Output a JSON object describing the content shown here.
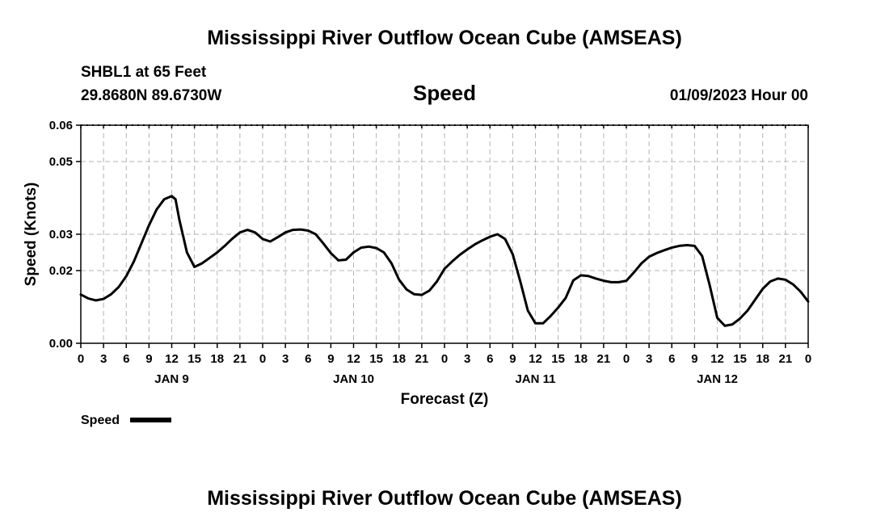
{
  "page": {
    "title_top": "Mississippi River Outflow Ocean Cube (AMSEAS)",
    "title_bottom": "Mississippi River Outflow Ocean Cube (AMSEAS)",
    "station": "SHBL1 at 65 Feet",
    "coords": "29.8680N  89.6730W",
    "variable": "Speed",
    "datetime": "01/09/2023 Hour 00"
  },
  "chart_data": {
    "type": "line",
    "title": "Speed",
    "xlabel": "Forecast (Z)",
    "ylabel": "Speed (Knots)",
    "x_unit": "forecast hour",
    "xlim": [
      0,
      96
    ],
    "ylim": [
      0,
      0.06
    ],
    "grid": true,
    "y_tick_values": [
      0,
      0.02,
      0.03,
      0.05,
      0.06
    ],
    "y_tick_labels": [
      "0.00",
      "0.02",
      "0.03",
      "0.05",
      "0.06"
    ],
    "x_tick_values": [
      0,
      3,
      6,
      9,
      12,
      15,
      18,
      21,
      24,
      27,
      30,
      33,
      36,
      39,
      42,
      45,
      48,
      51,
      54,
      57,
      60,
      63,
      66,
      69,
      72,
      75,
      78,
      81,
      84,
      87,
      90,
      93,
      96
    ],
    "x_tick_labels": [
      "0",
      "3",
      "6",
      "9",
      "12",
      "15",
      "18",
      "21",
      "0",
      "3",
      "6",
      "9",
      "12",
      "15",
      "18",
      "21",
      "0",
      "3",
      "6",
      "9",
      "12",
      "15",
      "18",
      "21",
      "0",
      "3",
      "6",
      "9",
      "12",
      "15",
      "18",
      "21",
      "0"
    ],
    "day_labels": [
      {
        "label": "JAN 9",
        "x": 12
      },
      {
        "label": "JAN 10",
        "x": 36
      },
      {
        "label": "JAN 11",
        "x": 60
      },
      {
        "label": "JAN 12",
        "x": 84
      }
    ],
    "legend": {
      "label": "Speed",
      "placement": "bottom-left"
    },
    "series": [
      {
        "name": "Speed",
        "x": [
          0,
          1,
          2,
          3,
          4,
          5,
          6,
          7,
          8,
          9,
          10,
          11,
          12,
          12.5,
          13,
          14,
          15,
          16,
          17,
          18,
          19,
          20,
          21,
          22,
          23,
          24,
          25,
          26,
          27,
          28,
          29,
          30,
          31,
          32,
          33,
          34,
          35,
          36,
          37,
          38,
          39,
          40,
          41,
          42,
          43,
          44,
          45,
          46,
          47,
          48,
          49,
          50,
          51,
          52,
          53,
          54,
          55,
          56,
          57,
          58,
          59,
          60,
          61,
          62,
          63,
          64,
          65,
          66,
          67,
          68,
          69,
          70,
          71,
          72,
          73,
          74,
          75,
          76,
          77,
          78,
          79,
          80,
          81,
          82,
          83,
          84,
          85,
          86,
          87,
          88,
          89,
          90,
          91,
          92,
          93,
          94,
          95,
          96
        ],
        "y": [
          0.0134,
          0.0123,
          0.0118,
          0.0122,
          0.0135,
          0.0155,
          0.0185,
          0.0225,
          0.0275,
          0.0325,
          0.0368,
          0.0396,
          0.0405,
          0.0396,
          0.034,
          0.025,
          0.021,
          0.022,
          0.0235,
          0.025,
          0.0268,
          0.0288,
          0.0305,
          0.0312,
          0.0305,
          0.0287,
          0.028,
          0.0292,
          0.0305,
          0.0312,
          0.0313,
          0.031,
          0.03,
          0.0275,
          0.0248,
          0.0228,
          0.023,
          0.025,
          0.0263,
          0.0266,
          0.0262,
          0.025,
          0.022,
          0.0175,
          0.0148,
          0.0135,
          0.0133,
          0.0145,
          0.017,
          0.0205,
          0.0225,
          0.0243,
          0.0258,
          0.0272,
          0.0283,
          0.0293,
          0.03,
          0.0287,
          0.0245,
          0.017,
          0.009,
          0.0055,
          0.0055,
          0.0075,
          0.0098,
          0.0125,
          0.0173,
          0.0187,
          0.0185,
          0.0178,
          0.0172,
          0.0168,
          0.0168,
          0.0172,
          0.0195,
          0.022,
          0.0238,
          0.0248,
          0.0256,
          0.0263,
          0.0268,
          0.027,
          0.0268,
          0.024,
          0.016,
          0.007,
          0.0048,
          0.0052,
          0.0068,
          0.009,
          0.012,
          0.015,
          0.017,
          0.0178,
          0.0175,
          0.0162,
          0.0142,
          0.0115
        ]
      }
    ]
  },
  "style": {
    "line_color": "#000000",
    "grid_color": "#b4b4b4"
  }
}
